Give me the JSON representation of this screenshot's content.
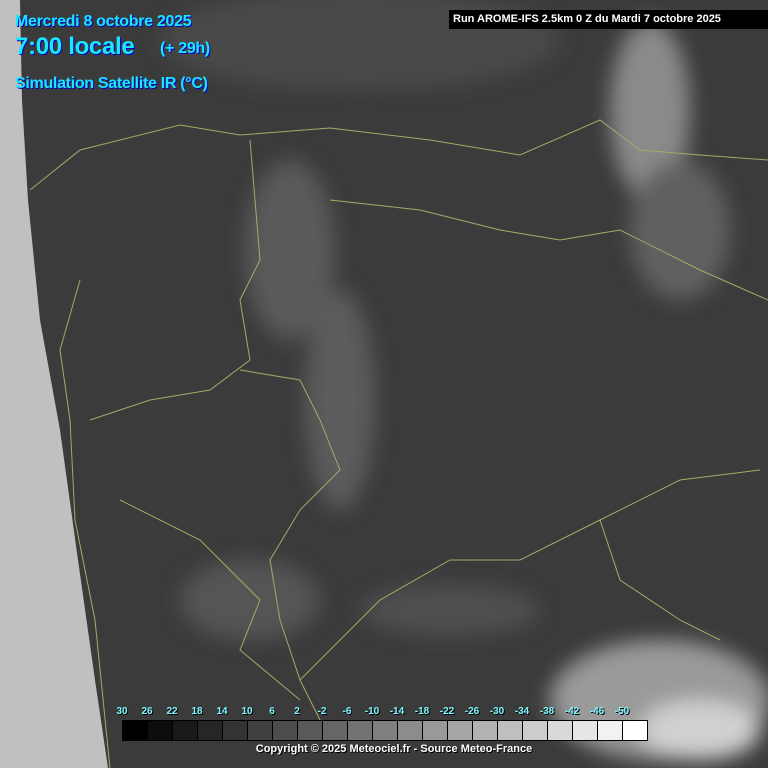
{
  "header": {
    "date": "Mercredi 8 octobre 2025",
    "time": "7:00 locale",
    "lead": "(+ 29h)",
    "product": "Simulation Satellite IR (°C)",
    "run": "Run AROME-IFS 2.5km 0 Z du Mardi 7 octobre 2025"
  },
  "legend": {
    "labels": [
      "30",
      "26",
      "22",
      "18",
      "14",
      "10",
      "6",
      "2",
      "-2",
      "-6",
      "-10",
      "-14",
      "-18",
      "-22",
      "-26",
      "-30",
      "-34",
      "-38",
      "-42",
      "-46",
      "-50"
    ],
    "colors": [
      "#000000",
      "#0d0d0d",
      "#1a1a1a",
      "#262626",
      "#333333",
      "#404040",
      "#4d4d4d",
      "#595959",
      "#666666",
      "#737373",
      "#808080",
      "#8c8c8c",
      "#999999",
      "#a6a6a6",
      "#b3b3b3",
      "#bfbfbf",
      "#cccccc",
      "#d9d9d9",
      "#e6e6e6",
      "#f2f2f2",
      "#ffffff"
    ]
  },
  "footer": {
    "copyright": "Copyright © 2025 Meteociel.fr - Source Meteo-France"
  },
  "colors": {
    "title_text": "#19e6ff",
    "borders": "#a8a86a",
    "outside_domain": "#c0c0c0"
  }
}
